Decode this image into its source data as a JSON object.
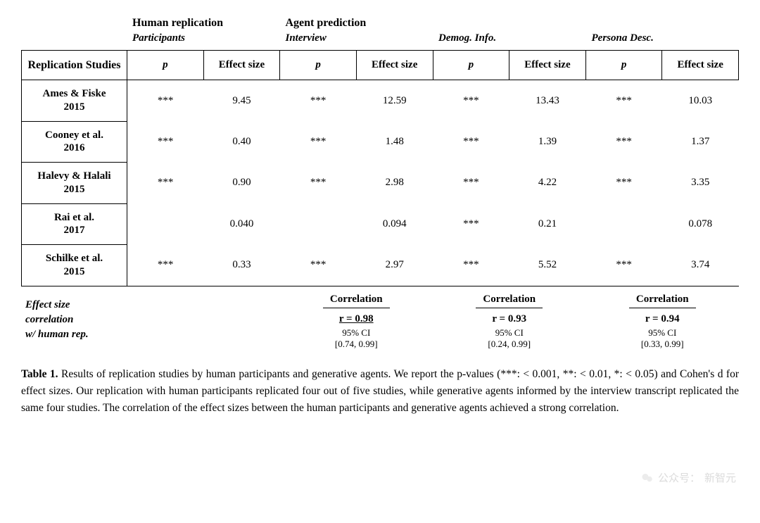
{
  "superheaders": {
    "human": "Human replication",
    "agent": "Agent prediction"
  },
  "subheaders": {
    "participants": "Participants",
    "interview": "Interview",
    "demog": "Demog. Info.",
    "persona": "Persona Desc."
  },
  "colheads": {
    "studies": "Replication Studies",
    "p": "p",
    "es": "Effect size"
  },
  "rows": [
    {
      "label": "Ames & Fiske 2015",
      "cells": [
        "***",
        "9.45",
        "***",
        "12.59",
        "***",
        "13.43",
        "***",
        "10.03"
      ]
    },
    {
      "label": "Cooney et al. 2016",
      "cells": [
        "***",
        "0.40",
        "***",
        "1.48",
        "***",
        "1.39",
        "***",
        "1.37"
      ]
    },
    {
      "label": "Halevy & Halali 2015",
      "cells": [
        "***",
        "0.90",
        "***",
        "2.98",
        "***",
        "4.22",
        "***",
        "3.35"
      ]
    },
    {
      "label": "Rai et al. 2017",
      "cells": [
        "",
        "0.040",
        "",
        "0.094",
        "***",
        "0.21",
        "",
        "0.078"
      ]
    },
    {
      "label": "Schilke et al. 2015",
      "cells": [
        "***",
        "0.33",
        "***",
        "2.97",
        "***",
        "5.52",
        "***",
        "3.74"
      ]
    }
  ],
  "corr": {
    "label_l1": "Effect size",
    "label_l2": "correlation",
    "label_l3": "w/ human rep.",
    "title": "Correlation",
    "ci_label": "95% CI",
    "blocks": [
      {
        "r": "r = 0.98",
        "ci": "[0.74, 0.99]",
        "underline": true
      },
      {
        "r": "r = 0.93",
        "ci": "[0.24, 0.99]",
        "underline": false
      },
      {
        "r": "r = 0.94",
        "ci": "[0.33, 0.99]",
        "underline": false
      }
    ]
  },
  "caption": {
    "lead": "Table 1.",
    "text": " Results of replication studies by human participants and generative agents. We report the p-values (***: < 0.001, **: < 0.01, *: < 0.05) and Cohen's d for effect sizes. Our replication with human participants replicated four out of five studies, while generative agents informed by the interview transcript replicated the same four studies. The correlation of the effect sizes between the human participants and generative agents achieved a strong correlation."
  },
  "watermark": {
    "prefix": "公众号：",
    "name": "新智元"
  }
}
